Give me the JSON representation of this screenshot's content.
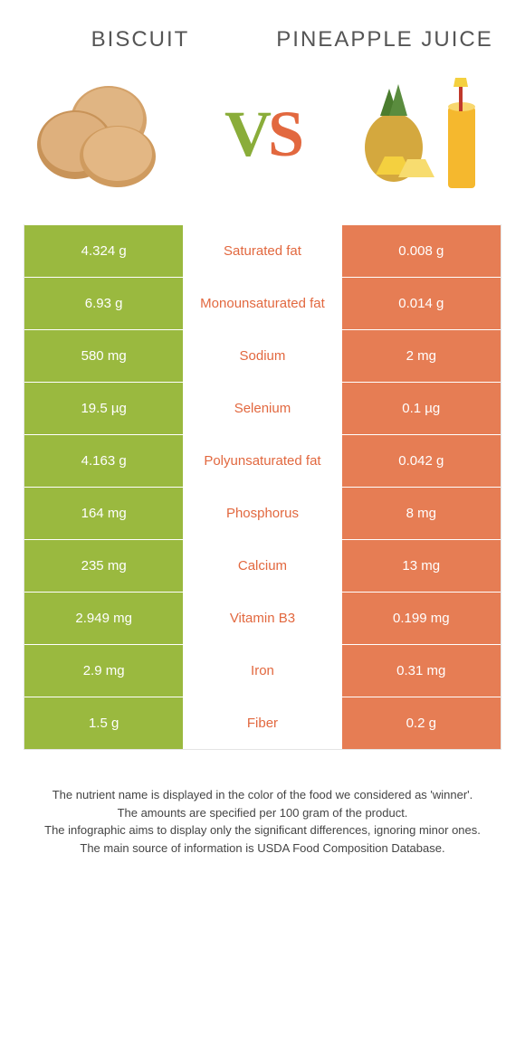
{
  "colors": {
    "left": "#9ab93f",
    "right": "#e67d54",
    "mid_left_text": "#e2683f",
    "mid_right_text": "#8aad3a"
  },
  "header": {
    "left_title": "Biscuit",
    "right_title": "Pineapple juice"
  },
  "vs": {
    "v": "V",
    "s": "S"
  },
  "rows": [
    {
      "left": "4.324 g",
      "mid": "Saturated fat",
      "right": "0.008 g",
      "winner": "left"
    },
    {
      "left": "6.93 g",
      "mid": "Monounsaturated fat",
      "right": "0.014 g",
      "winner": "left"
    },
    {
      "left": "580 mg",
      "mid": "Sodium",
      "right": "2 mg",
      "winner": "left"
    },
    {
      "left": "19.5 µg",
      "mid": "Selenium",
      "right": "0.1 µg",
      "winner": "left"
    },
    {
      "left": "4.163 g",
      "mid": "Polyunsaturated fat",
      "right": "0.042 g",
      "winner": "left"
    },
    {
      "left": "164 mg",
      "mid": "Phosphorus",
      "right": "8 mg",
      "winner": "left"
    },
    {
      "left": "235 mg",
      "mid": "Calcium",
      "right": "13 mg",
      "winner": "left"
    },
    {
      "left": "2.949 mg",
      "mid": "Vitamin B3",
      "right": "0.199 mg",
      "winner": "left"
    },
    {
      "left": "2.9 mg",
      "mid": "Iron",
      "right": "0.31 mg",
      "winner": "left"
    },
    {
      "left": "1.5 g",
      "mid": "Fiber",
      "right": "0.2 g",
      "winner": "left"
    }
  ],
  "footer": {
    "line1": "The nutrient name is displayed in the color of the food we considered as 'winner'.",
    "line2": "The amounts are specified per 100 gram of the product.",
    "line3": "The infographic aims to display only the significant differences, ignoring minor ones.",
    "line4": "The main source of information is USDA Food Composition Database."
  }
}
